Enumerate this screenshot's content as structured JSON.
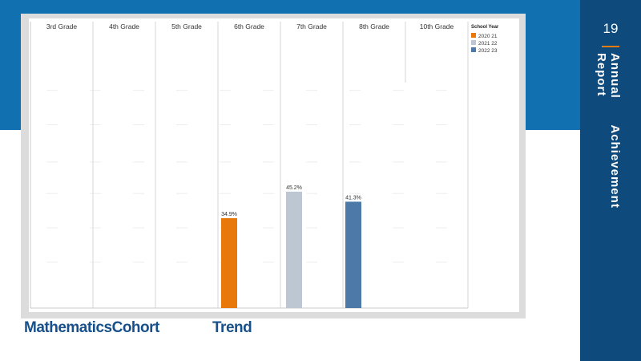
{
  "page": {
    "number": "19",
    "report_title": "Annual Achievement Report",
    "slide_title_left": "MathematicsCohort",
    "slide_title_right": "Trend"
  },
  "colors": {
    "band": "#1170b0",
    "panel": "#0e4a7c",
    "accent": "#f07c10",
    "title": "#17508a"
  },
  "chart_data": {
    "type": "bar",
    "columns": [
      "3rd Grade",
      "4th Grade",
      "5th Grade",
      "6th Grade",
      "7th Grade",
      "8th Grade",
      "10th Grade"
    ],
    "legend": {
      "title": "School Year",
      "placement": "top-right",
      "entries": [
        {
          "label": "2020 21",
          "color": "#e8780a"
        },
        {
          "label": "2021 22",
          "color": "#bcc7d3"
        },
        {
          "label": "2022 23",
          "color": "#4d79a8"
        }
      ]
    },
    "bars": [
      {
        "column": "6th Grade",
        "school_year": "2020 21",
        "value": 34.9,
        "label": "34.9%"
      },
      {
        "column": "7th Grade",
        "school_year": "2021 22",
        "value": 45.2,
        "label": "45.2%"
      },
      {
        "column": "8th Grade",
        "school_year": "2022 23",
        "value": 41.3,
        "label": "41.3%"
      }
    ],
    "ylim": [
      0,
      100
    ],
    "grid": false
  }
}
